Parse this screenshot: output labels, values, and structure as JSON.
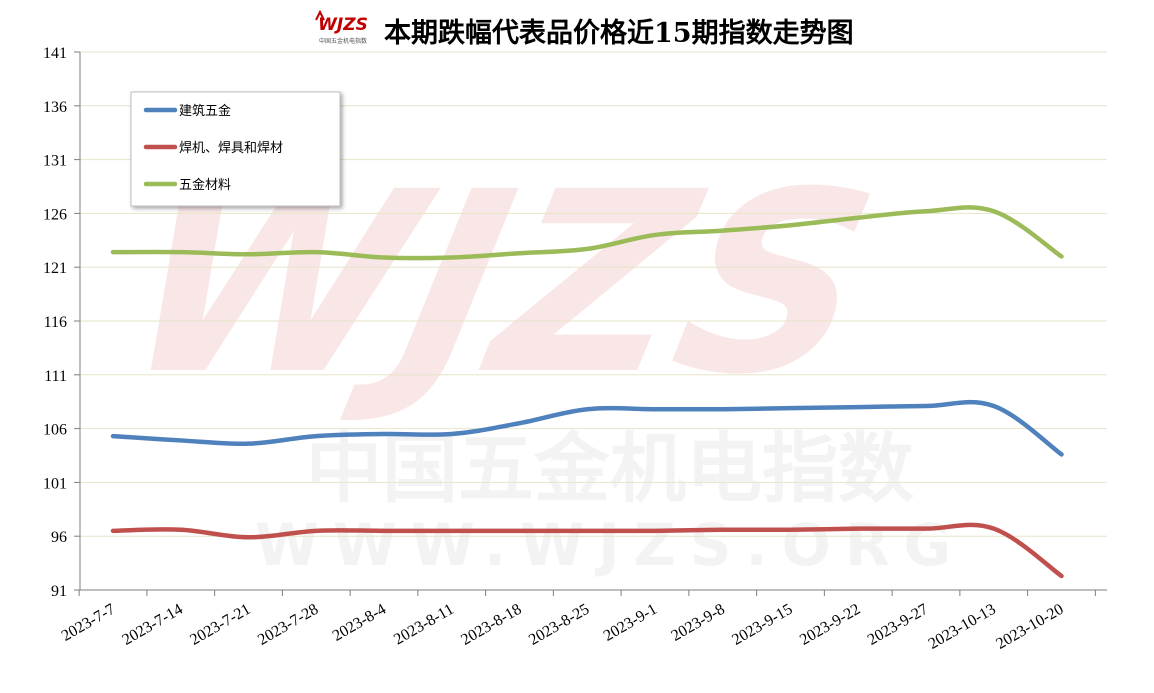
{
  "chart_data": {
    "type": "line",
    "title": "本期跌幅代表品价格近15期指数走势图",
    "logo_text": "WJZS",
    "logo_subtext": "中国五金机电指数",
    "watermark": {
      "logo": "WJZS",
      "line1": "中国五金机电指数",
      "line2": "WWW.WJZS.ORG"
    },
    "xlabel": "",
    "ylabel": "",
    "categories": [
      "2023-7-7",
      "2023-7-14",
      "2023-7-21",
      "2023-7-28",
      "2023-8-4",
      "2023-8-11",
      "2023-8-18",
      "2023-8-25",
      "2023-9-1",
      "2023-9-8",
      "2023-9-15",
      "2023-9-22",
      "2023-9-27",
      "2023-10-13",
      "2023-10-20"
    ],
    "yticks": [
      "141",
      "136",
      "131",
      "126",
      "121",
      "116",
      "111",
      "106",
      "101",
      "96",
      "91"
    ],
    "ylim": [
      91,
      141
    ],
    "grid": true,
    "legend_position": "top-left",
    "series": [
      {
        "name": "建筑五金",
        "color": "#4f81bd",
        "values": [
          105.3,
          104.9,
          104.6,
          105.3,
          105.5,
          105.5,
          106.5,
          107.8,
          107.8,
          107.8,
          107.9,
          108.0,
          108.1,
          108.1,
          103.6
        ]
      },
      {
        "name": "焊机、焊具和焊材",
        "color": "#c0504d",
        "values": [
          96.5,
          96.6,
          95.9,
          96.5,
          96.5,
          96.5,
          96.5,
          96.5,
          96.5,
          96.6,
          96.6,
          96.7,
          96.7,
          96.7,
          92.3
        ]
      },
      {
        "name": "五金材料",
        "color": "#9bbb59",
        "values": [
          122.4,
          122.4,
          122.2,
          122.4,
          121.9,
          121.9,
          122.3,
          122.7,
          124.0,
          124.4,
          124.9,
          125.6,
          126.2,
          126.2,
          122.0
        ]
      }
    ]
  }
}
